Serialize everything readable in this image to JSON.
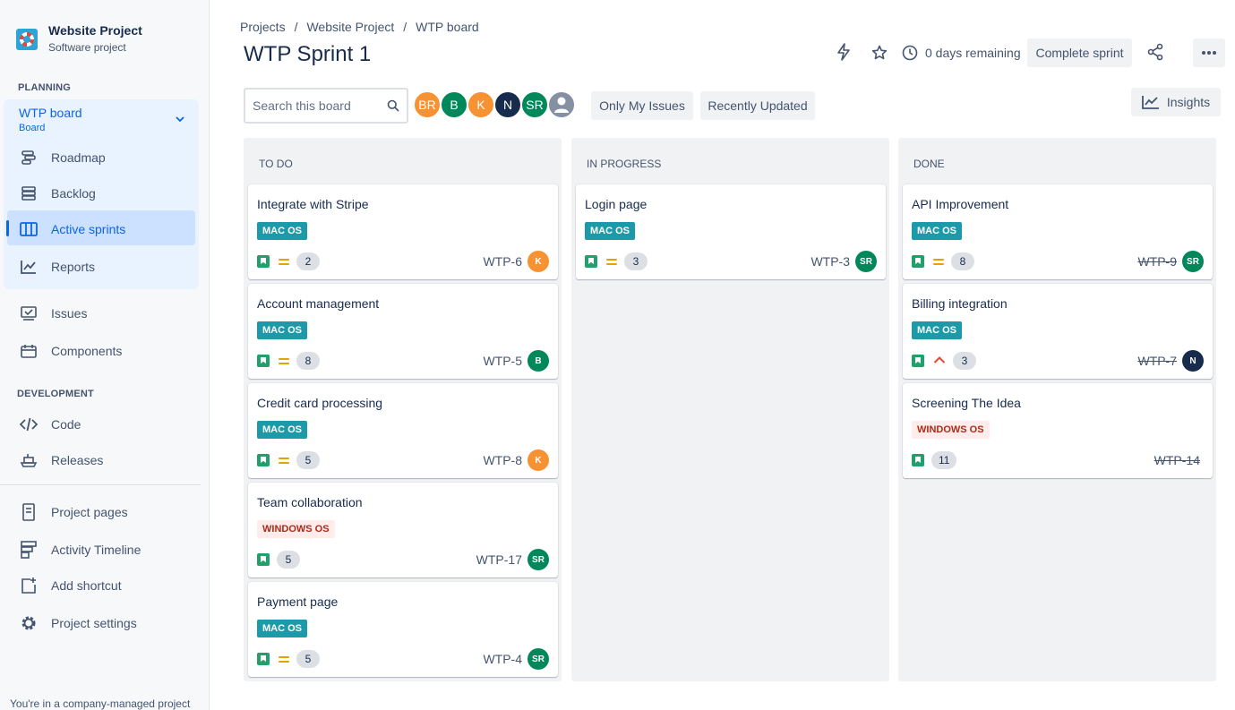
{
  "project": {
    "name": "Website Project",
    "type": "Software project"
  },
  "sidebar": {
    "planning_label": "PLANNING",
    "board": {
      "title": "WTP board",
      "subtitle": "Board"
    },
    "planning_items": [
      {
        "label": "Roadmap",
        "icon": "roadmap-icon"
      },
      {
        "label": "Backlog",
        "icon": "backlog-icon"
      },
      {
        "label": "Active sprints",
        "icon": "board-columns-icon",
        "active": true
      },
      {
        "label": "Reports",
        "icon": "reports-icon"
      }
    ],
    "other_items": [
      {
        "label": "Issues",
        "icon": "issues-icon"
      },
      {
        "label": "Components",
        "icon": "components-icon"
      }
    ],
    "development_label": "DEVELOPMENT",
    "development_items": [
      {
        "label": "Code",
        "icon": "code-icon"
      },
      {
        "label": "Releases",
        "icon": "releases-icon"
      }
    ],
    "bottom_items": [
      {
        "label": "Project pages",
        "icon": "page-icon"
      },
      {
        "label": "Activity Timeline",
        "icon": "timeline-icon"
      },
      {
        "label": "Add shortcut",
        "icon": "add-shortcut-icon"
      },
      {
        "label": "Project settings",
        "icon": "gear-icon"
      }
    ],
    "footer_note": "You're in a company-managed project"
  },
  "breadcrumb": [
    "Projects",
    "Website Project",
    "WTP board"
  ],
  "header": {
    "title": "WTP Sprint 1",
    "days_remaining": "0 days remaining",
    "complete_sprint": "Complete sprint",
    "insights": "Insights"
  },
  "filters": {
    "search_placeholder": "Search this board",
    "only_my_issues": "Only My Issues",
    "recently_updated": "Recently Updated",
    "avatars": [
      {
        "initials": "BR",
        "color": "#F79232"
      },
      {
        "initials": "B",
        "color": "#00875A"
      },
      {
        "initials": "K",
        "color": "#F79232"
      },
      {
        "initials": "N",
        "color": "#172B4D"
      },
      {
        "initials": "SR",
        "color": "#00875A"
      },
      {
        "initials": "",
        "color": "#8590A2"
      }
    ]
  },
  "colors": {
    "mac_tag": "#1D9AAA",
    "windows_tag_bg": "#FFECEB",
    "windows_tag_text": "#AE2A19",
    "story": "#22A06B",
    "accent": "#0C66E4"
  },
  "columns": [
    {
      "title": "TO DO",
      "cards": [
        {
          "title": "Integrate with Stripe",
          "tag": "MAC OS",
          "priority": "medium",
          "points": "2",
          "key": "WTP-6",
          "assignee": "K",
          "assignee_color": "#F79232"
        },
        {
          "title": "Account management",
          "tag": "MAC OS",
          "priority": "medium",
          "points": "8",
          "key": "WTP-5",
          "assignee": "B",
          "assignee_color": "#00875A"
        },
        {
          "title": "Credit card processing",
          "tag": "MAC OS",
          "priority": "medium",
          "points": "5",
          "key": "WTP-8",
          "assignee": "K",
          "assignee_color": "#F79232"
        },
        {
          "title": "Team collaboration",
          "tag": "WINDOWS OS",
          "priority": "none",
          "points": "5",
          "key": "WTP-17",
          "assignee": "SR",
          "assignee_color": "#00875A"
        },
        {
          "title": "Payment page",
          "tag": "MAC OS",
          "priority": "medium",
          "points": "5",
          "key": "WTP-4",
          "assignee": "SR",
          "assignee_color": "#00875A"
        }
      ]
    },
    {
      "title": "IN PROGRESS",
      "cards": [
        {
          "title": "Login page",
          "tag": "MAC OS",
          "priority": "medium",
          "points": "3",
          "key": "WTP-3",
          "assignee": "SR",
          "assignee_color": "#00875A"
        }
      ]
    },
    {
      "title": "DONE",
      "cards": [
        {
          "title": "API Improvement",
          "tag": "MAC OS",
          "priority": "medium",
          "points": "8",
          "key": "WTP-9",
          "assignee": "SR",
          "assignee_color": "#00875A",
          "done": true
        },
        {
          "title": "Billing integration",
          "tag": "MAC OS",
          "priority": "high",
          "points": "3",
          "key": "WTP-7",
          "assignee": "N",
          "assignee_color": "#172B4D",
          "done": true
        },
        {
          "title": "Screening The Idea",
          "tag": "WINDOWS OS",
          "priority": "none",
          "points": "11",
          "key": "WTP-14",
          "assignee": "",
          "assignee_color": "",
          "done": true
        }
      ]
    }
  ]
}
